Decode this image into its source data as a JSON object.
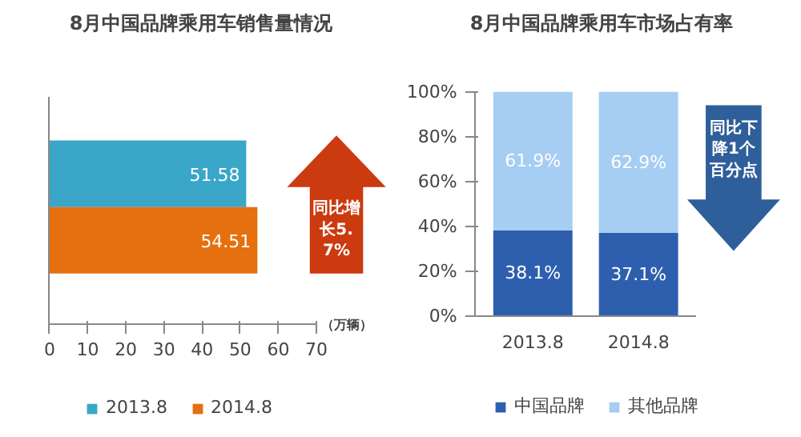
{
  "chart_data": [
    {
      "type": "bar",
      "title": "8月中国品牌乘用车销售量情况",
      "orientation": "horizontal",
      "categories": [
        null
      ],
      "xlabel": "（万辆）",
      "xlim": [
        0,
        70
      ],
      "xticks": [
        0,
        10,
        20,
        30,
        40,
        50,
        60,
        70
      ],
      "grid": false,
      "legend": "bottom",
      "data_labels": true,
      "series": [
        {
          "name": "2013.8",
          "color": "#3aa6c8",
          "values": [
            51.58
          ]
        },
        {
          "name": "2014.8",
          "color": "#e4700f",
          "values": [
            54.51
          ]
        }
      ],
      "annotations": [
        "同比增长5.7%"
      ]
    },
    {
      "type": "bar",
      "title": "8月中国品牌乘用车市场占有率",
      "stacked": true,
      "categories": [
        "2013.8",
        "2014.8"
      ],
      "ylim": [
        0,
        100
      ],
      "yticks": [
        {
          "value": 0,
          "label": "0%"
        },
        {
          "value": 20,
          "label": "20%"
        },
        {
          "value": 40,
          "label": "40%"
        },
        {
          "value": 60,
          "label": "60%"
        },
        {
          "value": 80,
          "label": "80%"
        },
        {
          "value": 100,
          "label": "100%"
        }
      ],
      "grid": false,
      "legend": "bottom",
      "series": [
        {
          "name": "中国品牌",
          "color": "#2e5fae",
          "values": [
            38.1,
            37.1
          ],
          "value_labels": [
            "38.1%",
            "37.1%"
          ]
        },
        {
          "name": "其他品牌",
          "color": "#a6cdf2",
          "values": [
            61.9,
            62.9
          ],
          "value_labels": [
            "61.9%",
            "62.9%"
          ]
        }
      ],
      "annotations": [
        "同比下降1个百分点"
      ]
    }
  ]
}
